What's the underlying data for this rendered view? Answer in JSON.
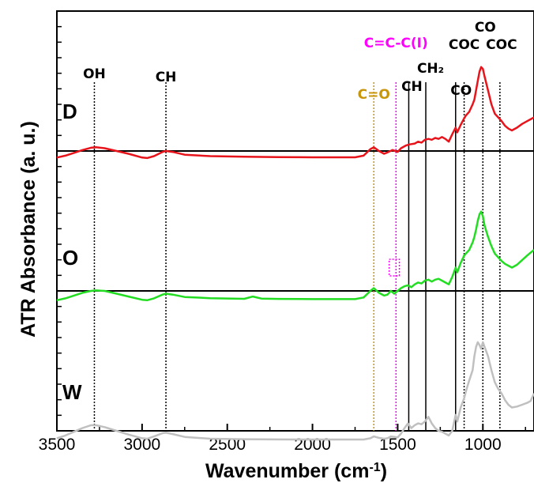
{
  "chart_data": {
    "type": "line",
    "xlabel": "Wavenumber (cm",
    "xlabel_sup": "-1",
    "xlabel_close": ")",
    "ylabel": "ATR Absorbance (a. u.)",
    "xlim": [
      3500,
      700
    ],
    "x_ticks": [
      3500,
      3000,
      2500,
      2000,
      1500,
      1000
    ],
    "grid": false,
    "panels": [
      "D",
      "O",
      "W"
    ],
    "series": [
      {
        "name": "D",
        "color": "#e8141b",
        "points": [
          [
            3500,
            0.23
          ],
          [
            3450,
            0.25
          ],
          [
            3400,
            0.28
          ],
          [
            3350,
            0.31
          ],
          [
            3300,
            0.335
          ],
          [
            3270,
            0.34
          ],
          [
            3220,
            0.33
          ],
          [
            3150,
            0.3
          ],
          [
            3080,
            0.27
          ],
          [
            3000,
            0.23
          ],
          [
            2970,
            0.225
          ],
          [
            2930,
            0.245
          ],
          [
            2880,
            0.29
          ],
          [
            2860,
            0.3
          ],
          [
            2820,
            0.29
          ],
          [
            2750,
            0.26
          ],
          [
            2600,
            0.245
          ],
          [
            2400,
            0.238
          ],
          [
            2200,
            0.235
          ],
          [
            2000,
            0.232
          ],
          [
            1900,
            0.232
          ],
          [
            1750,
            0.232
          ],
          [
            1700,
            0.25
          ],
          [
            1660,
            0.32
          ],
          [
            1640,
            0.34
          ],
          [
            1610,
            0.3
          ],
          [
            1580,
            0.27
          ],
          [
            1560,
            0.285
          ],
          [
            1530,
            0.31
          ],
          [
            1500,
            0.29
          ],
          [
            1480,
            0.33
          ],
          [
            1450,
            0.36
          ],
          [
            1430,
            0.37
          ],
          [
            1400,
            0.38
          ],
          [
            1380,
            0.4
          ],
          [
            1360,
            0.39
          ],
          [
            1340,
            0.42
          ],
          [
            1320,
            0.43
          ],
          [
            1300,
            0.42
          ],
          [
            1280,
            0.44
          ],
          [
            1260,
            0.43
          ],
          [
            1240,
            0.45
          ],
          [
            1220,
            0.43
          ],
          [
            1200,
            0.4
          ],
          [
            1180,
            0.48
          ],
          [
            1160,
            0.55
          ],
          [
            1150,
            0.5
          ],
          [
            1130,
            0.58
          ],
          [
            1110,
            0.65
          ],
          [
            1100,
            0.68
          ],
          [
            1080,
            0.72
          ],
          [
            1060,
            0.8
          ],
          [
            1050,
            0.85
          ],
          [
            1035,
            1.0
          ],
          [
            1020,
            1.15
          ],
          [
            1010,
            1.2
          ],
          [
            1000,
            1.18
          ],
          [
            990,
            1.1
          ],
          [
            970,
            0.95
          ],
          [
            950,
            0.8
          ],
          [
            930,
            0.7
          ],
          [
            910,
            0.66
          ],
          [
            890,
            0.62
          ],
          [
            870,
            0.57
          ],
          [
            850,
            0.54
          ],
          [
            830,
            0.52
          ],
          [
            800,
            0.55
          ],
          [
            770,
            0.59
          ],
          [
            740,
            0.62
          ],
          [
            720,
            0.64
          ],
          [
            700,
            0.66
          ]
        ]
      },
      {
        "name": "O",
        "color": "#22dd22",
        "points": [
          [
            3500,
            0.2
          ],
          [
            3450,
            0.22
          ],
          [
            3400,
            0.25
          ],
          [
            3350,
            0.28
          ],
          [
            3300,
            0.3
          ],
          [
            3270,
            0.305
          ],
          [
            3220,
            0.3
          ],
          [
            3150,
            0.27
          ],
          [
            3080,
            0.24
          ],
          [
            3000,
            0.205
          ],
          [
            2970,
            0.2
          ],
          [
            2930,
            0.22
          ],
          [
            2880,
            0.26
          ],
          [
            2860,
            0.27
          ],
          [
            2820,
            0.26
          ],
          [
            2750,
            0.235
          ],
          [
            2600,
            0.222
          ],
          [
            2400,
            0.215
          ],
          [
            2350,
            0.24
          ],
          [
            2300,
            0.218
          ],
          [
            2200,
            0.214
          ],
          [
            2000,
            0.212
          ],
          [
            1800,
            0.212
          ],
          [
            1750,
            0.212
          ],
          [
            1700,
            0.23
          ],
          [
            1660,
            0.3
          ],
          [
            1640,
            0.33
          ],
          [
            1610,
            0.28
          ],
          [
            1580,
            0.25
          ],
          [
            1560,
            0.26
          ],
          [
            1540,
            0.3
          ],
          [
            1520,
            0.27
          ],
          [
            1500,
            0.3
          ],
          [
            1480,
            0.33
          ],
          [
            1460,
            0.35
          ],
          [
            1440,
            0.36
          ],
          [
            1420,
            0.34
          ],
          [
            1400,
            0.37
          ],
          [
            1380,
            0.39
          ],
          [
            1360,
            0.38
          ],
          [
            1340,
            0.41
          ],
          [
            1320,
            0.42
          ],
          [
            1300,
            0.4
          ],
          [
            1280,
            0.42
          ],
          [
            1260,
            0.43
          ],
          [
            1240,
            0.41
          ],
          [
            1220,
            0.39
          ],
          [
            1200,
            0.37
          ],
          [
            1180,
            0.45
          ],
          [
            1160,
            0.55
          ],
          [
            1150,
            0.5
          ],
          [
            1130,
            0.6
          ],
          [
            1110,
            0.68
          ],
          [
            1100,
            0.7
          ],
          [
            1080,
            0.74
          ],
          [
            1060,
            0.82
          ],
          [
            1050,
            0.88
          ],
          [
            1040,
            0.96
          ],
          [
            1030,
            1.05
          ],
          [
            1020,
            1.12
          ],
          [
            1010,
            1.15
          ],
          [
            1000,
            1.1
          ],
          [
            990,
            1.0
          ],
          [
            970,
            0.88
          ],
          [
            950,
            0.78
          ],
          [
            930,
            0.7
          ],
          [
            910,
            0.66
          ],
          [
            890,
            0.62
          ],
          [
            870,
            0.59
          ],
          [
            850,
            0.57
          ],
          [
            830,
            0.55
          ],
          [
            800,
            0.58
          ],
          [
            770,
            0.63
          ],
          [
            740,
            0.68
          ],
          [
            720,
            0.71
          ],
          [
            700,
            0.74
          ]
        ]
      },
      {
        "name": "W",
        "color": "#c0c0c0",
        "points": [
          [
            3500,
            0.22
          ],
          [
            3450,
            0.25
          ],
          [
            3400,
            0.29
          ],
          [
            3350,
            0.33
          ],
          [
            3300,
            0.36
          ],
          [
            3270,
            0.36
          ],
          [
            3220,
            0.34
          ],
          [
            3150,
            0.3
          ],
          [
            3080,
            0.26
          ],
          [
            3000,
            0.22
          ],
          [
            2970,
            0.215
          ],
          [
            2930,
            0.24
          ],
          [
            2880,
            0.275
          ],
          [
            2860,
            0.28
          ],
          [
            2820,
            0.265
          ],
          [
            2750,
            0.235
          ],
          [
            2600,
            0.215
          ],
          [
            2400,
            0.21
          ],
          [
            2200,
            0.208
          ],
          [
            2000,
            0.207
          ],
          [
            1800,
            0.207
          ],
          [
            1700,
            0.207
          ],
          [
            1660,
            0.22
          ],
          [
            1640,
            0.24
          ],
          [
            1610,
            0.225
          ],
          [
            1580,
            0.215
          ],
          [
            1560,
            0.22
          ],
          [
            1540,
            0.24
          ],
          [
            1500,
            0.23
          ],
          [
            1480,
            0.27
          ],
          [
            1460,
            0.33
          ],
          [
            1440,
            0.38
          ],
          [
            1420,
            0.33
          ],
          [
            1400,
            0.36
          ],
          [
            1380,
            0.38
          ],
          [
            1360,
            0.37
          ],
          [
            1340,
            0.4
          ],
          [
            1320,
            0.45
          ],
          [
            1300,
            0.38
          ],
          [
            1280,
            0.33
          ],
          [
            1260,
            0.3
          ],
          [
            1240,
            0.29
          ],
          [
            1220,
            0.27
          ],
          [
            1200,
            0.25
          ],
          [
            1180,
            0.3
          ],
          [
            1160,
            0.47
          ],
          [
            1150,
            0.4
          ],
          [
            1130,
            0.55
          ],
          [
            1110,
            0.65
          ],
          [
            1100,
            0.72
          ],
          [
            1080,
            0.84
          ],
          [
            1060,
            0.95
          ],
          [
            1050,
            1.1
          ],
          [
            1040,
            1.2
          ],
          [
            1030,
            1.25
          ],
          [
            1020,
            1.22
          ],
          [
            1010,
            1.18
          ],
          [
            1000,
            1.25
          ],
          [
            990,
            1.2
          ],
          [
            970,
            1.1
          ],
          [
            950,
            0.95
          ],
          [
            930,
            0.82
          ],
          [
            910,
            0.75
          ],
          [
            890,
            0.7
          ],
          [
            870,
            0.63
          ],
          [
            850,
            0.58
          ],
          [
            830,
            0.55
          ],
          [
            800,
            0.56
          ],
          [
            770,
            0.58
          ],
          [
            740,
            0.6
          ],
          [
            720,
            0.62
          ],
          [
            700,
            0.7
          ]
        ]
      }
    ],
    "reference_lines": [
      {
        "label": "OH",
        "x": 3280,
        "color": "#000000",
        "style": "dotted"
      },
      {
        "label": "CH",
        "x": 2860,
        "color": "#000000",
        "style": "dotted"
      },
      {
        "label": "C=O",
        "x": 1640,
        "color": "#c8960a",
        "style": "dotted"
      },
      {
        "label": "C=C-C(I)",
        "x": 1510,
        "color": "#ff00ff",
        "style": "dotted"
      },
      {
        "label": "CH",
        "x": 1435,
        "color": "#000000",
        "style": "solid"
      },
      {
        "label": "CH₂",
        "x": 1335,
        "color": "#000000",
        "style": "solid"
      },
      {
        "label": "CO",
        "x": 1160,
        "color": "#000000",
        "style": "solid"
      },
      {
        "label": "COC",
        "x": 1110,
        "color": "#000000",
        "style": "dotted"
      },
      {
        "label": "CO",
        "x": 1000,
        "color": "#000000",
        "style": "dotted"
      },
      {
        "label": "COC",
        "x": 900,
        "color": "#000000",
        "style": "dotted"
      }
    ],
    "highlight_box": {
      "x_range": [
        1550,
        1490
      ],
      "panel": "O",
      "color": "#ff00ff"
    }
  }
}
